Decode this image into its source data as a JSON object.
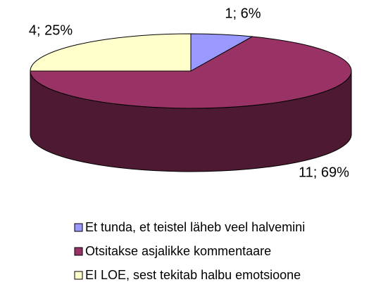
{
  "chart_data": {
    "type": "pie",
    "categories": [
      "Et tunda, et teistel läheb veel halvemini",
      "Otsitakse asjalikke kommentaare",
      "EI LOE, sest tekitab halbu emotsioone"
    ],
    "values": [
      1,
      11,
      4
    ],
    "percents": [
      6,
      69,
      25
    ],
    "value_labels": [
      "1; 6%",
      "11; 69%",
      "4; 25%"
    ],
    "colors": [
      "#9999ff",
      "#993366",
      "#ffffcc"
    ],
    "side_colors": [
      "#4d4d80",
      "#4d1933",
      "#808066"
    ],
    "legend": "bottom"
  }
}
